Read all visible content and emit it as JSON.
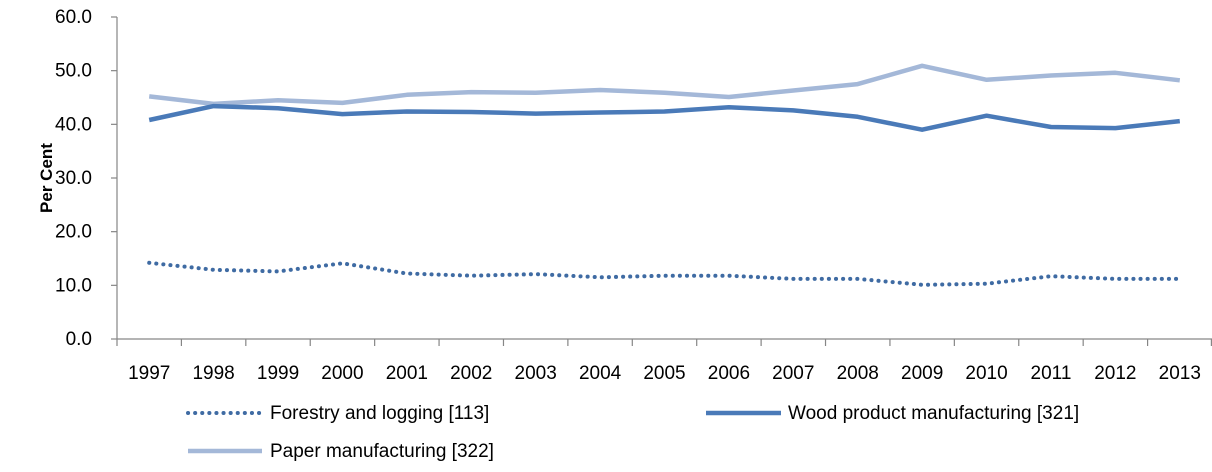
{
  "chart_data": {
    "type": "line",
    "title": "",
    "xlabel": "",
    "ylabel": "Per Cent",
    "ylim": [
      0,
      60
    ],
    "yticks": [
      "0.0",
      "10.0",
      "20.0",
      "30.0",
      "40.0",
      "50.0",
      "60.0"
    ],
    "categories": [
      "1997",
      "1998",
      "1999",
      "2000",
      "2001",
      "2002",
      "2003",
      "2004",
      "2005",
      "2006",
      "2007",
      "2008",
      "2009",
      "2010",
      "2011",
      "2012",
      "2013"
    ],
    "grid": false,
    "legend_position": "bottom",
    "series": [
      {
        "name": "Forestry and logging [113]",
        "style": "dotted",
        "color": "#3f6ba3",
        "values": [
          14.2,
          12.9,
          12.6,
          14.1,
          12.2,
          11.8,
          12.1,
          11.5,
          11.8,
          11.8,
          11.2,
          11.2,
          10.1,
          10.3,
          11.7,
          11.2,
          11.2
        ]
      },
      {
        "name": "Wood product manufacturing [321]",
        "style": "solid",
        "color": "#4a7ab8",
        "values": [
          40.8,
          43.4,
          43.0,
          41.9,
          42.4,
          42.3,
          42.0,
          42.2,
          42.4,
          43.2,
          42.6,
          41.4,
          39.0,
          41.6,
          39.5,
          39.3,
          40.6
        ]
      },
      {
        "name": "Paper manufacturing [322]",
        "style": "solid",
        "color": "#a4b8d8",
        "values": [
          45.2,
          43.8,
          44.5,
          44.0,
          45.5,
          46.0,
          45.9,
          46.4,
          45.9,
          45.1,
          46.3,
          47.5,
          50.9,
          48.3,
          49.1,
          49.6,
          48.2
        ]
      }
    ]
  }
}
